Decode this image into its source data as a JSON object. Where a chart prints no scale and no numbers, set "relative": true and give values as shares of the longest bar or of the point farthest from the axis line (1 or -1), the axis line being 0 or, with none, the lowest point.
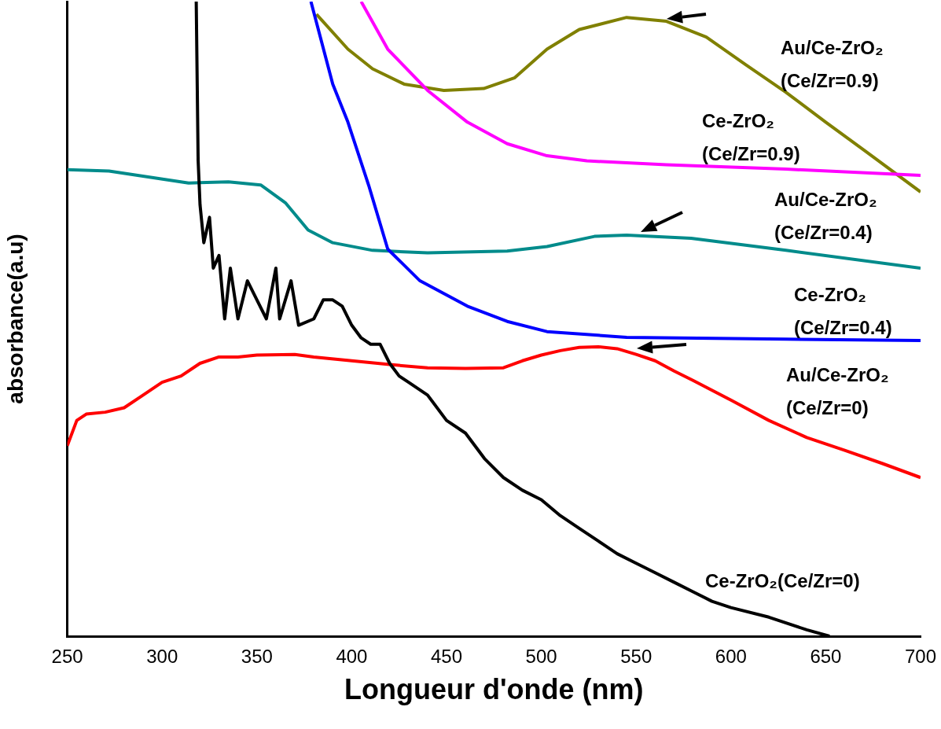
{
  "chart_data": {
    "type": "line",
    "relative": true,
    "xlabel": "Longueur d'onde (nm)",
    "ylabel": "absorbance(a.u)",
    "xlim": [
      250,
      700
    ],
    "xticks": [
      250,
      300,
      350,
      400,
      450,
      500,
      550,
      600,
      650,
      700
    ],
    "grid": false,
    "legend": false,
    "marker": "none",
    "line_style": "solid",
    "series": [
      {
        "name": "Ce-ZrO₂(Ce/Zr=0)",
        "color": "#000000",
        "x": [
          318,
          319,
          320,
          322,
          325,
          327,
          330,
          333,
          336,
          340,
          345,
          350,
          355,
          360,
          362,
          368,
          372,
          380,
          385,
          390,
          395,
          400,
          405,
          410,
          415,
          420,
          425,
          430,
          440,
          450,
          460,
          470,
          480,
          490,
          500,
          510,
          520,
          530,
          540,
          550,
          560,
          570,
          580,
          590,
          600,
          620,
          640,
          652
        ],
        "values": [
          1.0,
          0.75,
          0.68,
          0.62,
          0.66,
          0.58,
          0.6,
          0.5,
          0.58,
          0.5,
          0.56,
          0.53,
          0.5,
          0.58,
          0.5,
          0.56,
          0.49,
          0.5,
          0.53,
          0.53,
          0.52,
          0.49,
          0.47,
          0.46,
          0.46,
          0.43,
          0.41,
          0.4,
          0.38,
          0.34,
          0.32,
          0.28,
          0.25,
          0.23,
          0.215,
          0.19,
          0.17,
          0.15,
          0.13,
          0.115,
          0.1,
          0.085,
          0.07,
          0.055,
          0.045,
          0.03,
          0.01,
          0.0
        ]
      },
      {
        "name": "Au/Ce-ZrO₂ (Ce/Zr=0)",
        "color": "#ff0000",
        "x": [
          250,
          255,
          260,
          270,
          280,
          290,
          300,
          310,
          320,
          330,
          340,
          350,
          370,
          380,
          400,
          420,
          440,
          460,
          480,
          490,
          500,
          510,
          520,
          530,
          540,
          550,
          560,
          570,
          580,
          600,
          620,
          640,
          660,
          680,
          700
        ],
        "values": [
          0.3,
          0.34,
          0.35,
          0.353,
          0.36,
          0.38,
          0.4,
          0.41,
          0.43,
          0.44,
          0.44,
          0.443,
          0.444,
          0.44,
          0.434,
          0.428,
          0.423,
          0.422,
          0.423,
          0.434,
          0.443,
          0.45,
          0.455,
          0.456,
          0.453,
          0.444,
          0.434,
          0.418,
          0.403,
          0.372,
          0.34,
          0.313,
          0.293,
          0.272,
          0.25
        ]
      },
      {
        "name": "Ce-ZrO₂ (Ce/Zr=0.4)",
        "color": "#0000ff",
        "x": [
          378.5,
          390,
          398,
          409,
          419,
          436,
          461,
          482,
          503,
          545,
          629,
          700
        ],
        "values": [
          1.0,
          0.87,
          0.81,
          0.71,
          0.61,
          0.56,
          0.52,
          0.496,
          0.48,
          0.471,
          0.468,
          0.466
        ]
      },
      {
        "name": "Au/Ce-ZrO₂ (Ce/Zr=0.4)",
        "color": "#008b8b",
        "x": [
          250,
          272,
          314,
          335,
          352,
          365,
          377,
          390,
          411,
          440,
          482,
          503,
          528,
          545,
          579,
          629,
          700
        ],
        "values": [
          0.735,
          0.733,
          0.714,
          0.716,
          0.711,
          0.683,
          0.64,
          0.62,
          0.608,
          0.604,
          0.607,
          0.614,
          0.63,
          0.632,
          0.627,
          0.608,
          0.58
        ]
      },
      {
        "name": "Ce-ZrO₂ (Ce/Zr=0.9)",
        "color": "#ff00ff",
        "x": [
          405,
          419,
          440,
          461,
          482,
          503,
          524,
          566,
          629,
          700
        ],
        "values": [
          1.0,
          0.925,
          0.86,
          0.81,
          0.776,
          0.757,
          0.749,
          0.743,
          0.736,
          0.726
        ]
      },
      {
        "name": "Au/Ce-ZrO₂ (Ce/Zr=0.9)",
        "color": "#808000",
        "x": [
          381.4,
          398,
          411,
          427.6,
          448.6,
          469.6,
          486,
          503,
          520,
          545,
          566,
          587,
          608,
          629,
          650,
          671,
          700
        ],
        "values": [
          0.98,
          0.925,
          0.894,
          0.87,
          0.86,
          0.863,
          0.88,
          0.925,
          0.956,
          0.975,
          0.969,
          0.944,
          0.9,
          0.857,
          0.81,
          0.764,
          0.7
        ]
      }
    ]
  }
}
